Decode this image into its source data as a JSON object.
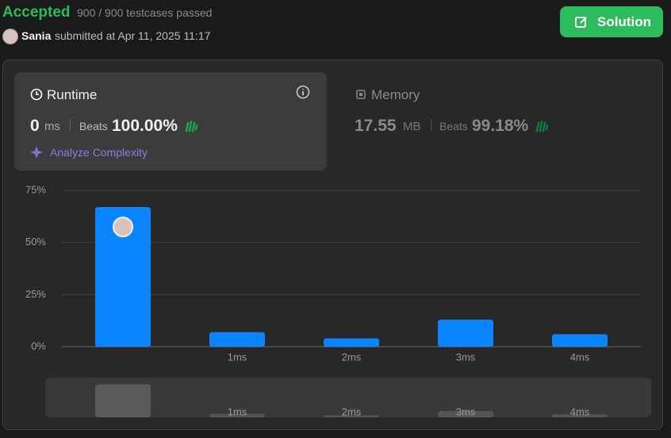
{
  "header": {
    "status": "Accepted",
    "testcases": "900 / 900 testcases passed",
    "user": "Sania",
    "submitted": "submitted at Apr 11, 2025 11:17",
    "button": "Solution"
  },
  "runtime": {
    "title": "Runtime",
    "value": "0",
    "unit": "ms",
    "beats_label": "Beats",
    "beats": "100.00%",
    "analyze": "Analyze Complexity"
  },
  "memory": {
    "title": "Memory",
    "value": "17.55",
    "unit": "MB",
    "beats_label": "Beats",
    "beats": "99.18%"
  },
  "chart_data": {
    "type": "bar",
    "categories": [
      null,
      "1ms",
      "2ms",
      "3ms",
      "4ms"
    ],
    "values": [
      67,
      7,
      4,
      13,
      6
    ],
    "color": "#0a84ff",
    "ylim": [
      0,
      75
    ],
    "yticks": [
      {
        "value": 0,
        "label": "0%"
      },
      {
        "value": 25,
        "label": "25%"
      },
      {
        "value": 50,
        "label": "50%"
      },
      {
        "value": 75,
        "label": "75%"
      }
    ],
    "grid": true
  }
}
